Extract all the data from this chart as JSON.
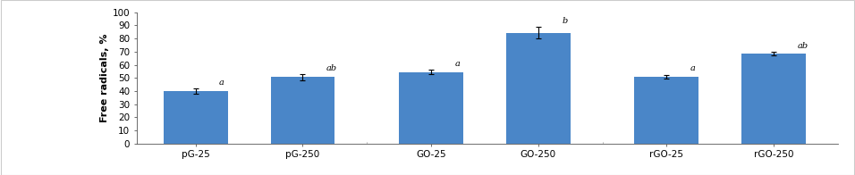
{
  "categories": [
    "pG-25",
    "pG-250",
    "GO-25",
    "GO-250",
    "rGO-25",
    "rGO-250"
  ],
  "values": [
    40.0,
    50.5,
    54.5,
    84.5,
    51.0,
    68.5
  ],
  "errors": [
    2.0,
    2.5,
    1.5,
    4.5,
    1.5,
    1.5
  ],
  "annotations": [
    "a",
    "ab",
    "a",
    "b",
    "a",
    "ab"
  ],
  "bar_color": "#4A86C8",
  "ylabel": "Free radicals, %",
  "ylim": [
    0,
    100
  ],
  "yticks": [
    0,
    10,
    20,
    30,
    40,
    50,
    60,
    70,
    80,
    90,
    100
  ],
  "bar_width": 0.6,
  "annotation_fontsize": 7,
  "ylabel_fontsize": 8,
  "tick_fontsize": 7.5,
  "background_color": "#ffffff",
  "figure_background": "#ffffff",
  "border_color": "#aaaaaa",
  "x_positions": [
    0,
    1,
    2.2,
    3.2,
    4.4,
    5.4
  ]
}
